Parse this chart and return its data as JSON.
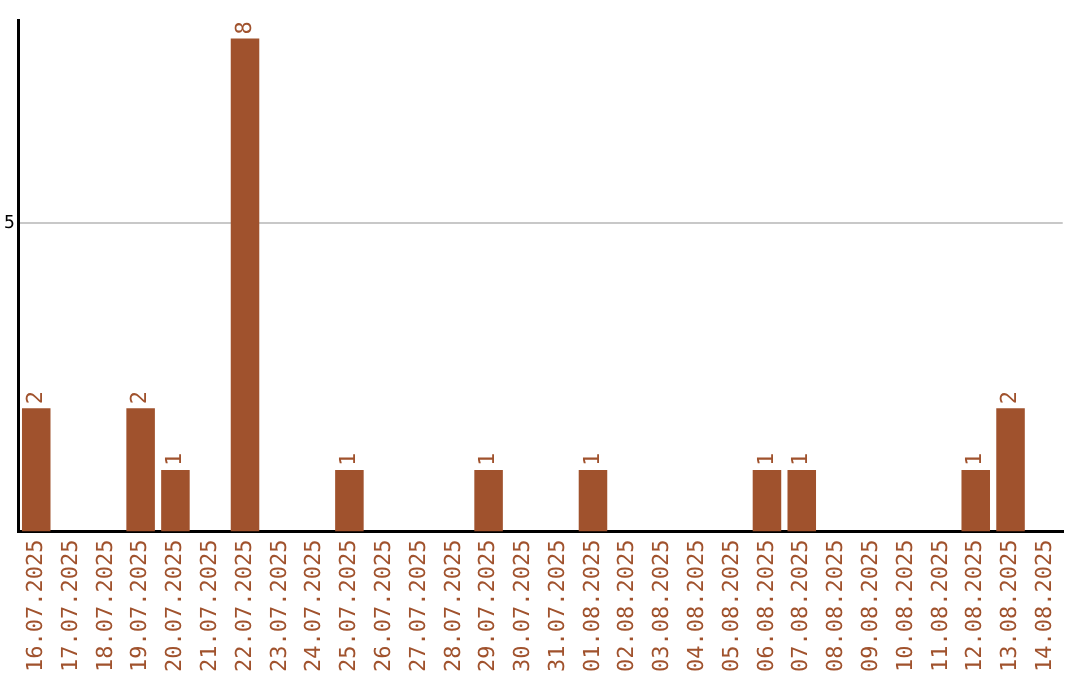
{
  "chart_data": {
    "type": "bar",
    "categories": [
      "16.07.2025",
      "17.07.2025",
      "18.07.2025",
      "19.07.2025",
      "20.07.2025",
      "21.07.2025",
      "22.07.2025",
      "23.07.2025",
      "24.07.2025",
      "25.07.2025",
      "26.07.2025",
      "27.07.2025",
      "28.07.2025",
      "29.07.2025",
      "30.07.2025",
      "31.07.2025",
      "01.08.2025",
      "02.08.2025",
      "03.08.2025",
      "04.08.2025",
      "05.08.2025",
      "06.08.2025",
      "07.08.2025",
      "08.08.2025",
      "09.08.2025",
      "10.08.2025",
      "11.08.2025",
      "12.08.2025",
      "13.08.2025",
      "14.08.2025"
    ],
    "values": [
      2,
      0,
      0,
      2,
      1,
      0,
      8,
      0,
      0,
      1,
      0,
      0,
      0,
      1,
      0,
      0,
      1,
      0,
      0,
      0,
      0,
      1,
      1,
      0,
      0,
      0,
      0,
      1,
      2,
      0
    ],
    "color": "#a0522d",
    "value_labels": [
      "2",
      null,
      null,
      "2",
      "1",
      null,
      "8",
      null,
      null,
      "1",
      null,
      null,
      null,
      "1",
      null,
      null,
      "1",
      null,
      null,
      null,
      null,
      "1",
      "1",
      null,
      null,
      null,
      null,
      "1",
      "2",
      null
    ],
    "ylim": [
      0,
      8.3
    ],
    "yticks": [
      5
    ],
    "grid": "y",
    "legend": false
  }
}
